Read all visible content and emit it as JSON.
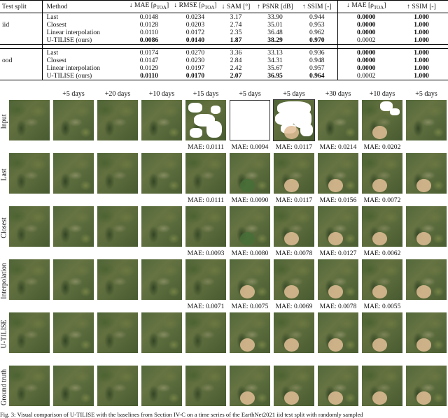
{
  "table": {
    "headers": [
      "Test split",
      "Method",
      "↓ MAE [ρ",
      "TOA",
      "]",
      "↓ RMSE [ρ",
      "TOA",
      "]",
      "↓ SAM [°]",
      "↑ PSNR [dB]",
      "↑ SSIM [-]",
      "↓ MAE [ρ",
      "TOA",
      "]",
      "↑ SSIM [-]"
    ],
    "groups": [
      {
        "split": "iid",
        "rows": [
          {
            "method": "Last",
            "mae": "0.0148",
            "rmse": "0.0234",
            "sam": "3.17",
            "psnr": "33.90",
            "ssim": "0.944",
            "mae2": "0.0000",
            "ssim2": "1.000"
          },
          {
            "method": "Closest",
            "mae": "0.0128",
            "rmse": "0.0203",
            "sam": "2.74",
            "psnr": "35.01",
            "ssim": "0.953",
            "mae2": "0.0000",
            "ssim2": "1.000"
          },
          {
            "method": "Linear interpolation",
            "mae": "0.0110",
            "rmse": "0.0172",
            "sam": "2.35",
            "psnr": "36.48",
            "ssim": "0.962",
            "mae2": "0.0000",
            "ssim2": "1.000"
          },
          {
            "method": "U-TILISE (ours)",
            "mae": "0.0086",
            "rmse": "0.0140",
            "sam": "1.87",
            "psnr": "38.29",
            "ssim": "0.970",
            "mae2": "0.0002",
            "ssim2": "1.000"
          }
        ]
      },
      {
        "split": "ood",
        "rows": [
          {
            "method": "Last",
            "mae": "0.0174",
            "rmse": "0.0270",
            "sam": "3.36",
            "psnr": "33.13",
            "ssim": "0.936",
            "mae2": "0.0000",
            "ssim2": "1.000"
          },
          {
            "method": "Closest",
            "mae": "0.0147",
            "rmse": "0.0230",
            "sam": "2.84",
            "psnr": "34.31",
            "ssim": "0.948",
            "mae2": "0.0000",
            "ssim2": "1.000"
          },
          {
            "method": "Linear interpolation",
            "mae": "0.0129",
            "rmse": "0.0197",
            "sam": "2.42",
            "psnr": "35.67",
            "ssim": "0.957",
            "mae2": "0.0000",
            "ssim2": "1.000"
          },
          {
            "method": "U-TILISE (ours)",
            "mae": "0.0110",
            "rmse": "0.0170",
            "sam": "2.07",
            "psnr": "36.95",
            "ssim": "0.964",
            "mae2": "0.0002",
            "ssim2": "1.000"
          }
        ]
      }
    ]
  },
  "figure": {
    "time_labels": [
      "",
      "+5 days",
      "+20 days",
      "+10 days",
      "+15 days",
      "+5 days",
      "+5 days",
      "+30 days",
      "+10 days",
      "+5 days"
    ],
    "row_labels": [
      "Input",
      "Last",
      "Closest",
      "Interpolation",
      "U-TILISE",
      "Ground truth"
    ],
    "mae": {
      "last": [
        "MAE: 0.0111",
        "MAE: 0.0094",
        "MAE: 0.0117",
        "MAE: 0.0214",
        "MAE: 0.0202"
      ],
      "closest": [
        "MAE: 0.0111",
        "MAE: 0.0090",
        "MAE: 0.0117",
        "MAE: 0.0156",
        "MAE: 0.0072"
      ],
      "interpolation": [
        "MAE: 0.0093",
        "MAE: 0.0080",
        "MAE: 0.0078",
        "MAE: 0.0127",
        "MAE: 0.0062"
      ],
      "utilise": [
        "MAE: 0.0071",
        "MAE: 0.0075",
        "MAE: 0.0069",
        "MAE: 0.0078",
        "MAE: 0.0055"
      ]
    }
  },
  "caption": "Fig. 3: Visual comparison of U-TILISE with the baselines from Section IV-C on a time series of the EarthNet2021 iid test split with randomly sampled"
}
